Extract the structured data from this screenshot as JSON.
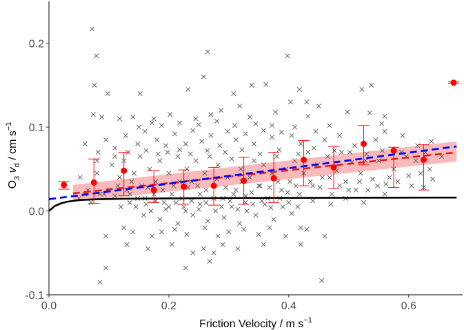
{
  "chart_data": {
    "type": "scatter",
    "title": "",
    "xlabel": {
      "main": "Friction Velocity / m s",
      "sup": "−1"
    },
    "ylabel": {
      "o": "O",
      "sub3": "3",
      "v": "v",
      "subd": "d",
      "unit": " / cm s",
      "sup": "−1"
    },
    "xlim": [
      0.0,
      0.69
    ],
    "ylim": [
      -0.1,
      0.25
    ],
    "x_ticks": [
      0.0,
      0.2,
      0.4,
      0.6
    ],
    "x_tick_labels": [
      "0.0",
      "0.2",
      "0.4",
      "0.6"
    ],
    "y_ticks": [
      -0.1,
      0.0,
      0.1,
      0.2
    ],
    "y_tick_labels": [
      "-0.1",
      "0.0",
      "0.1",
      "0.2"
    ],
    "grid": false,
    "legend": "none",
    "colors": {
      "points": "#555555",
      "binned": "#ff0000",
      "fit_red": "#e41a1c",
      "fit_blue": "#0000ff",
      "band": "#f5a3a3",
      "model": "#000000"
    },
    "binned_means": [
      {
        "x": 0.025,
        "y": 0.031,
        "lo": 0.026,
        "hi": 0.035
      },
      {
        "x": 0.075,
        "y": 0.034,
        "lo": 0.009,
        "hi": 0.062
      },
      {
        "x": 0.125,
        "y": 0.048,
        "lo": 0.018,
        "hi": 0.07
      },
      {
        "x": 0.175,
        "y": 0.025,
        "lo": 0.01,
        "hi": 0.048
      },
      {
        "x": 0.225,
        "y": 0.029,
        "lo": 0.008,
        "hi": 0.049
      },
      {
        "x": 0.275,
        "y": 0.03,
        "lo": 0.007,
        "hi": 0.052
      },
      {
        "x": 0.325,
        "y": 0.036,
        "lo": 0.008,
        "hi": 0.064
      },
      {
        "x": 0.375,
        "y": 0.039,
        "lo": 0.01,
        "hi": 0.07
      },
      {
        "x": 0.425,
        "y": 0.061,
        "lo": 0.03,
        "hi": 0.084
      },
      {
        "x": 0.475,
        "y": 0.052,
        "lo": 0.027,
        "hi": 0.077
      },
      {
        "x": 0.525,
        "y": 0.08,
        "lo": 0.055,
        "hi": 0.102
      },
      {
        "x": 0.575,
        "y": 0.072,
        "lo": 0.028,
        "hi": 0.076
      },
      {
        "x": 0.625,
        "y": 0.061,
        "lo": 0.025,
        "hi": 0.079
      },
      {
        "x": 0.675,
        "y": 0.153,
        "lo": 0.152,
        "hi": 0.154
      }
    ],
    "fit_red": {
      "x": [
        0.04,
        0.68
      ],
      "y": [
        0.021,
        0.07
      ]
    },
    "fit_red_band": {
      "x": [
        0.04,
        0.68
      ],
      "lo": [
        0.011,
        0.059
      ],
      "hi": [
        0.031,
        0.083
      ]
    },
    "fit_blue": {
      "x": [
        0.0,
        0.68
      ],
      "y": [
        0.014,
        0.077
      ]
    },
    "model_line": {
      "x": [
        0.0,
        0.01,
        0.02,
        0.03,
        0.05,
        0.08,
        0.12,
        0.2,
        0.3,
        0.68
      ],
      "y": [
        0.0,
        0.006,
        0.009,
        0.011,
        0.013,
        0.014,
        0.0145,
        0.015,
        0.0155,
        0.016
      ]
    },
    "scatter_points": [
      [
        0.072,
        0.217
      ],
      [
        0.079,
        0.185
      ],
      [
        0.265,
        0.19
      ],
      [
        0.398,
        0.185
      ],
      [
        0.076,
        0.15
      ],
      [
        0.098,
        0.14
      ],
      [
        0.152,
        0.14
      ],
      [
        0.232,
        0.145
      ],
      [
        0.258,
        0.16
      ],
      [
        0.308,
        0.14
      ],
      [
        0.338,
        0.15
      ],
      [
        0.362,
        0.151
      ],
      [
        0.287,
        0.12
      ],
      [
        0.318,
        0.125
      ],
      [
        0.403,
        0.13
      ],
      [
        0.418,
        0.145
      ],
      [
        0.43,
        0.13
      ],
      [
        0.45,
        0.125
      ],
      [
        0.522,
        0.145
      ],
      [
        0.538,
        0.15
      ],
      [
        0.074,
        0.115
      ],
      [
        0.088,
        0.112
      ],
      [
        0.118,
        0.11
      ],
      [
        0.14,
        0.112
      ],
      [
        0.175,
        0.11
      ],
      [
        0.202,
        0.115
      ],
      [
        0.245,
        0.11
      ],
      [
        0.27,
        0.115
      ],
      [
        0.335,
        0.112
      ],
      [
        0.378,
        0.118
      ],
      [
        0.432,
        0.113
      ],
      [
        0.498,
        0.118
      ],
      [
        0.535,
        0.117
      ],
      [
        0.56,
        0.113
      ],
      [
        0.06,
        0.08
      ],
      [
        0.082,
        0.07
      ],
      [
        0.095,
        0.085
      ],
      [
        0.11,
        0.075
      ],
      [
        0.128,
        0.09
      ],
      [
        0.148,
        0.08
      ],
      [
        0.16,
        0.095
      ],
      [
        0.18,
        0.085
      ],
      [
        0.195,
        0.078
      ],
      [
        0.21,
        0.092
      ],
      [
        0.228,
        0.08
      ],
      [
        0.24,
        0.096
      ],
      [
        0.255,
        0.083
      ],
      [
        0.27,
        0.09
      ],
      [
        0.285,
        0.078
      ],
      [
        0.298,
        0.095
      ],
      [
        0.312,
        0.085
      ],
      [
        0.328,
        0.092
      ],
      [
        0.342,
        0.08
      ],
      [
        0.358,
        0.096
      ],
      [
        0.372,
        0.088
      ],
      [
        0.388,
        0.094
      ],
      [
        0.405,
        0.09
      ],
      [
        0.42,
        0.08
      ],
      [
        0.445,
        0.095
      ],
      [
        0.46,
        0.085
      ],
      [
        0.485,
        0.09
      ],
      [
        0.51,
        0.078
      ],
      [
        0.545,
        0.085
      ],
      [
        0.56,
        0.095
      ],
      [
        0.59,
        0.09
      ],
      [
        0.615,
        0.078
      ],
      [
        0.638,
        0.083
      ],
      [
        0.052,
        0.04
      ],
      [
        0.065,
        0.025
      ],
      [
        0.08,
        0.045
      ],
      [
        0.092,
        0.02
      ],
      [
        0.105,
        0.055
      ],
      [
        0.115,
        0.03
      ],
      [
        0.125,
        0.06
      ],
      [
        0.135,
        0.02
      ],
      [
        0.142,
        0.045
      ],
      [
        0.152,
        0.065
      ],
      [
        0.16,
        0.015
      ],
      [
        0.168,
        0.05
      ],
      [
        0.178,
        0.035
      ],
      [
        0.185,
        0.06
      ],
      [
        0.192,
        0.01
      ],
      [
        0.2,
        0.045
      ],
      [
        0.208,
        0.03
      ],
      [
        0.215,
        0.065
      ],
      [
        0.222,
        0.015
      ],
      [
        0.23,
        0.05
      ],
      [
        0.238,
        0.035
      ],
      [
        0.245,
        0.06
      ],
      [
        0.252,
        0.02
      ],
      [
        0.26,
        0.045
      ],
      [
        0.268,
        0.065
      ],
      [
        0.275,
        0.03
      ],
      [
        0.282,
        0.055
      ],
      [
        0.29,
        0.015
      ],
      [
        0.298,
        0.04
      ],
      [
        0.305,
        0.062
      ],
      [
        0.312,
        0.025
      ],
      [
        0.32,
        0.05
      ],
      [
        0.328,
        0.01
      ],
      [
        0.335,
        0.04
      ],
      [
        0.342,
        0.06
      ],
      [
        0.35,
        0.03
      ],
      [
        0.358,
        0.055
      ],
      [
        0.365,
        0.015
      ],
      [
        0.372,
        0.045
      ],
      [
        0.38,
        0.065
      ],
      [
        0.388,
        0.025
      ],
      [
        0.395,
        0.05
      ],
      [
        0.402,
        0.035
      ],
      [
        0.41,
        0.06
      ],
      [
        0.418,
        0.02
      ],
      [
        0.425,
        0.045
      ],
      [
        0.432,
        0.07
      ],
      [
        0.44,
        0.03
      ],
      [
        0.448,
        0.055
      ],
      [
        0.456,
        0.04
      ],
      [
        0.465,
        0.065
      ],
      [
        0.472,
        0.02
      ],
      [
        0.48,
        0.048
      ],
      [
        0.488,
        0.07
      ],
      [
        0.495,
        0.035
      ],
      [
        0.505,
        0.058
      ],
      [
        0.512,
        0.025
      ],
      [
        0.52,
        0.045
      ],
      [
        0.53,
        0.068
      ],
      [
        0.54,
        0.038
      ],
      [
        0.55,
        0.06
      ],
      [
        0.562,
        0.032
      ],
      [
        0.575,
        0.05
      ],
      [
        0.588,
        0.07
      ],
      [
        0.6,
        0.042
      ],
      [
        0.612,
        0.06
      ],
      [
        0.625,
        0.028
      ],
      [
        0.635,
        0.05
      ],
      [
        0.655,
        0.065
      ],
      [
        0.13,
        0.025
      ],
      [
        0.145,
        0.005
      ],
      [
        0.158,
        -0.005
      ],
      [
        0.17,
        0.0
      ],
      [
        0.185,
        -0.01
      ],
      [
        0.2,
        0.005
      ],
      [
        0.215,
        -0.015
      ],
      [
        0.228,
        0.0
      ],
      [
        0.24,
        -0.005
      ],
      [
        0.252,
        0.008
      ],
      [
        0.265,
        -0.012
      ],
      [
        0.278,
        0.0
      ],
      [
        0.292,
        -0.008
      ],
      [
        0.305,
        0.005
      ],
      [
        0.318,
        -0.015
      ],
      [
        0.33,
        0.0
      ],
      [
        0.345,
        -0.005
      ],
      [
        0.36,
        0.008
      ],
      [
        0.375,
        -0.01
      ],
      [
        0.39,
        0.005
      ],
      [
        0.405,
        -0.003
      ],
      [
        0.42,
        -0.02
      ],
      [
        0.125,
        -0.02
      ],
      [
        0.14,
        -0.025
      ],
      [
        0.172,
        -0.03
      ],
      [
        0.188,
        -0.025
      ],
      [
        0.21,
        -0.022
      ],
      [
        0.23,
        -0.028
      ],
      [
        0.26,
        -0.02
      ],
      [
        0.282,
        -0.03
      ],
      [
        0.3,
        -0.025
      ],
      [
        0.325,
        -0.022
      ],
      [
        0.35,
        -0.028
      ],
      [
        0.368,
        -0.02
      ],
      [
        0.395,
        -0.03
      ],
      [
        0.43,
        -0.022
      ],
      [
        0.46,
        -0.03
      ],
      [
        0.095,
        -0.03
      ],
      [
        0.13,
        -0.04
      ],
      [
        0.165,
        -0.045
      ],
      [
        0.205,
        -0.04
      ],
      [
        0.24,
        -0.05
      ],
      [
        0.258,
        -0.045
      ],
      [
        0.268,
        -0.06
      ],
      [
        0.275,
        -0.05
      ],
      [
        0.29,
        -0.04
      ],
      [
        0.315,
        -0.045
      ],
      [
        0.358,
        -0.04
      ],
      [
        0.42,
        -0.04
      ],
      [
        0.095,
        -0.068
      ],
      [
        0.085,
        -0.085
      ],
      [
        0.228,
        -0.068
      ],
      [
        0.455,
        -0.083
      ],
      [
        0.05,
        0.015
      ],
      [
        0.06,
        0.02
      ],
      [
        0.07,
        0.01
      ],
      [
        0.085,
        0.02
      ],
      [
        0.1,
        0.025
      ],
      [
        0.11,
        0.018
      ],
      [
        0.118,
        0.04
      ],
      [
        0.138,
        0.035
      ],
      [
        0.155,
        0.03
      ],
      [
        0.165,
        0.028
      ],
      [
        0.175,
        0.02
      ],
      [
        0.19,
        0.025
      ],
      [
        0.205,
        0.02
      ],
      [
        0.218,
        0.035
      ],
      [
        0.232,
        0.028
      ],
      [
        0.248,
        0.03
      ],
      [
        0.262,
        0.025
      ],
      [
        0.28,
        0.038
      ],
      [
        0.295,
        0.028
      ],
      [
        0.308,
        0.02
      ],
      [
        0.322,
        0.035
      ],
      [
        0.338,
        0.022
      ],
      [
        0.352,
        0.03
      ],
      [
        0.368,
        0.028
      ],
      [
        0.382,
        0.035
      ],
      [
        0.398,
        0.022
      ],
      [
        0.412,
        0.03
      ],
      [
        0.436,
        0.035
      ],
      [
        0.452,
        0.028
      ],
      [
        0.468,
        0.04
      ],
      [
        0.485,
        0.03
      ],
      [
        0.5,
        0.025
      ],
      [
        0.518,
        0.035
      ],
      [
        0.532,
        0.025
      ],
      [
        0.548,
        0.03
      ],
      [
        0.568,
        0.04
      ],
      [
        0.582,
        0.035
      ],
      [
        0.605,
        0.03
      ],
      [
        0.62,
        0.045
      ],
      [
        0.64,
        0.038
      ],
      [
        0.12,
        0.005
      ],
      [
        0.135,
        0.01
      ],
      [
        0.148,
        0.015
      ],
      [
        0.162,
        0.008
      ],
      [
        0.178,
        0.012
      ],
      [
        0.195,
        0.002
      ],
      [
        0.212,
        0.01
      ],
      [
        0.225,
        0.005
      ],
      [
        0.238,
        0.012
      ],
      [
        0.25,
        0.002
      ],
      [
        0.262,
        0.01
      ],
      [
        0.275,
        0.015
      ],
      [
        0.288,
        0.005
      ],
      [
        0.302,
        0.012
      ],
      [
        0.315,
        0.002
      ],
      [
        0.328,
        0.018
      ],
      [
        0.34,
        0.008
      ],
      [
        0.355,
        0.012
      ],
      [
        0.37,
        0.004
      ],
      [
        0.385,
        0.015
      ],
      [
        0.4,
        0.01
      ],
      [
        0.415,
        0.005
      ],
      [
        0.44,
        0.012
      ],
      [
        0.47,
        0.008
      ],
      [
        0.495,
        0.015
      ],
      [
        0.525,
        0.01
      ],
      [
        0.56,
        0.02
      ],
      [
        0.15,
        0.1
      ],
      [
        0.172,
        0.105
      ],
      [
        0.188,
        0.102
      ],
      [
        0.218,
        0.105
      ],
      [
        0.25,
        0.103
      ],
      [
        0.28,
        0.107
      ],
      [
        0.31,
        0.102
      ],
      [
        0.345,
        0.104
      ],
      [
        0.372,
        0.102
      ],
      [
        0.41,
        0.1
      ],
      [
        0.468,
        0.102
      ],
      [
        0.555,
        0.104
      ],
      [
        0.08,
        0.06
      ],
      [
        0.11,
        0.065
      ],
      [
        0.132,
        0.07
      ],
      [
        0.162,
        0.072
      ],
      [
        0.182,
        0.068
      ],
      [
        0.198,
        0.07
      ],
      [
        0.218,
        0.073
      ],
      [
        0.236,
        0.068
      ],
      [
        0.264,
        0.072
      ],
      [
        0.294,
        0.07
      ],
      [
        0.322,
        0.073
      ],
      [
        0.352,
        0.068
      ],
      [
        0.384,
        0.073
      ],
      [
        0.416,
        0.068
      ],
      [
        0.442,
        0.075
      ],
      [
        0.476,
        0.072
      ],
      [
        0.502,
        0.07
      ],
      [
        0.528,
        0.06
      ],
      [
        0.556,
        0.072
      ],
      [
        0.596,
        0.065
      ],
      [
        0.628,
        0.07
      ]
    ]
  }
}
